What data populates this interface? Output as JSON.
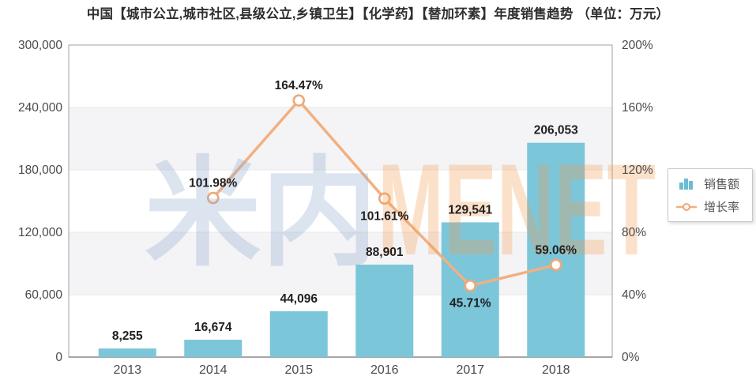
{
  "title": "中国【城市公立,城市社区,县级公立,乡镇卫生】【化学药】【替加环素】年度销售趋势 （单位：万元）",
  "watermark": {
    "cjk": "米内",
    "latin": "MENET"
  },
  "legend": {
    "sales_label": "销售额",
    "growth_label": "增长率"
  },
  "colors": {
    "bar": "#7cc6da",
    "line": "#f2b080",
    "marker_stroke": "#efa878",
    "marker_fill": "#ffffff",
    "band": "#f4f4f6",
    "gridline": "#e7e7e7",
    "plot_border": "#a0a0a0",
    "axis_line": "#8a8a8a",
    "label_text": "#1f1f1f",
    "axis_text": "#4a4a4a",
    "watermark_cjk": "#8aa7cc",
    "watermark_latin": "#f59a4e"
  },
  "chart_data": {
    "type": "bar",
    "title": "中国【城市公立,城市社区,县级公立,乡镇卫生】【化学药】【替加环素】年度销售趋势 （单位：万元）",
    "categories": [
      "2013",
      "2014",
      "2015",
      "2016",
      "2017",
      "2018"
    ],
    "series": [
      {
        "name": "销售额",
        "type": "bar",
        "axis": "left",
        "values": [
          8255,
          16674,
          44096,
          88901,
          129541,
          206053
        ],
        "labels": [
          "8,255",
          "16,674",
          "44,096",
          "88,901",
          "129,541",
          "206,053"
        ]
      },
      {
        "name": "增长率",
        "type": "line",
        "axis": "right",
        "values": [
          null,
          101.98,
          164.47,
          101.61,
          45.71,
          59.06
        ],
        "labels": [
          null,
          "101.98%",
          "164.47%",
          "101.61%",
          "45.71%",
          "59.06%"
        ],
        "label_placement": [
          null,
          "above",
          "above",
          "below",
          "below",
          "above"
        ]
      }
    ],
    "left_axis": {
      "min": 0,
      "max": 300000,
      "tick_labels_top_to_bottom": [
        "300,000",
        "240,000",
        "180,000",
        "120,000",
        "60,000",
        "0"
      ]
    },
    "right_axis": {
      "min": 0,
      "max": 200,
      "tick_labels_top_to_bottom": [
        "200%",
        "160%",
        "120%",
        "80%",
        "40%",
        "0%"
      ]
    },
    "grid": "horizontal-lines-with-alternating-bands",
    "legend_position": "right"
  }
}
